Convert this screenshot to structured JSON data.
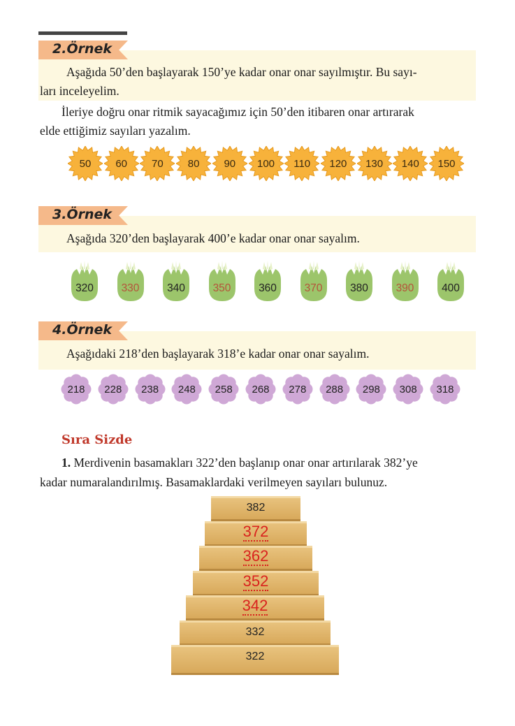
{
  "example2": {
    "badge": "2.Örnek",
    "intro_line1": "Aşağıda 50’den başlayarak 150’ye kadar onar onar sayılmıştır. Bu sayı-",
    "intro_line2": "ları inceleyelim.",
    "text_line1": "İleriye doğru onar ritmik sayacağımız için 50’den itibaren onar artırarak",
    "text_line2": "elde ettiğimiz sayıları yazalım.",
    "numbers": [
      "50",
      "60",
      "70",
      "80",
      "90",
      "100",
      "110",
      "120",
      "130",
      "140",
      "150"
    ],
    "color": "#f7b23b"
  },
  "example3": {
    "badge": "3.Örnek",
    "text": "Aşağıda 320’den başlayarak 400’e kadar onar onar sayalım.",
    "numbers": [
      "320",
      "330",
      "340",
      "350",
      "360",
      "370",
      "380",
      "390",
      "400"
    ],
    "colors": [
      "#222222",
      "#b5533a",
      "#222222",
      "#b5533a",
      "#222222",
      "#b5533a",
      "#222222",
      "#b5533a",
      "#222222"
    ],
    "egg_color": "#9cc56b"
  },
  "example4": {
    "badge": "4.Örnek",
    "text": "Aşağıdaki 218’den başlayarak 318’e kadar onar onar sayalım.",
    "numbers": [
      "218",
      "228",
      "238",
      "248",
      "258",
      "268",
      "278",
      "288",
      "298",
      "308",
      "318"
    ],
    "flower_color": "#cfa8d6"
  },
  "sira_sizde": {
    "title": "Sıra Sizde",
    "q_number": "1.",
    "q_line1": "Merdivenin basamakları 322’den başlanıp onar onar artırılarak 382’ye",
    "q_line2": "kadar numaralandırılmış. Basamaklardaki verilmeyen sayıları bulunuz.",
    "steps": [
      {
        "value": "382",
        "answer": false
      },
      {
        "value": "372",
        "answer": true
      },
      {
        "value": "362",
        "answer": true
      },
      {
        "value": "352",
        "answer": true
      },
      {
        "value": "342",
        "answer": true
      },
      {
        "value": "332",
        "answer": false
      },
      {
        "value": "322",
        "answer": false
      }
    ],
    "answer_color": "#d9231e"
  }
}
